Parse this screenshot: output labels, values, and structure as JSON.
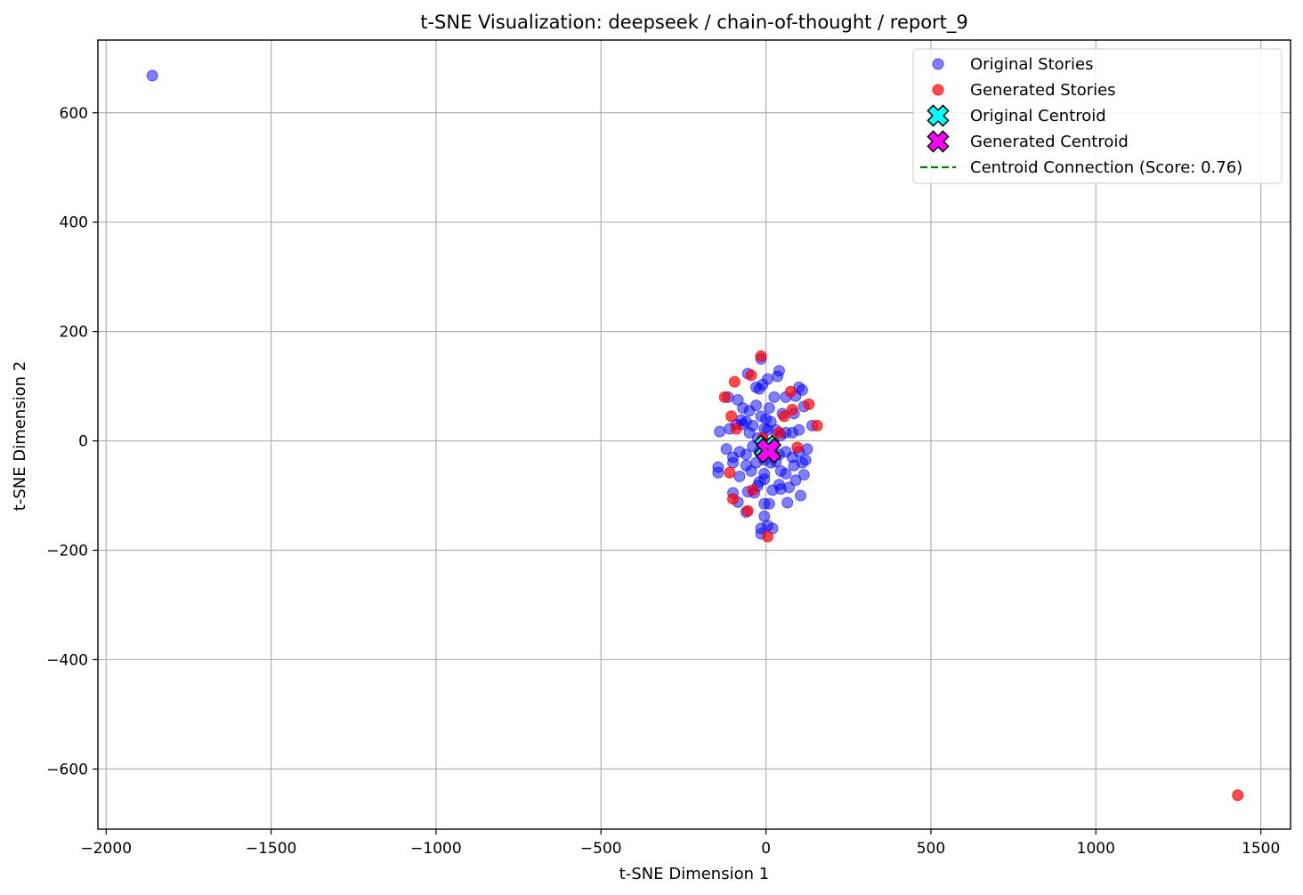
{
  "chart_data": {
    "type": "scatter",
    "title": "t-SNE Visualization: deepseek / chain-of-thought / report_9",
    "xlabel": "t-SNE Dimension 1",
    "ylabel": "t-SNE Dimension 2",
    "xlim": [
      -2025,
      1590
    ],
    "ylim": [
      -710,
      733
    ],
    "xticks": [
      -2000,
      -1500,
      -1000,
      -500,
      0,
      500,
      1000,
      1500
    ],
    "yticks": [
      -600,
      -400,
      -200,
      0,
      200,
      400,
      600
    ],
    "grid": true,
    "legend_position": "top-right",
    "series": [
      {
        "name": "Original Stories",
        "color": "#0000ff",
        "marker": "circle",
        "points": [
          [
            -1860,
            668
          ],
          [
            -55,
            123
          ],
          [
            40,
            128
          ],
          [
            -15,
            150
          ],
          [
            35,
            118
          ],
          [
            -20,
            95
          ],
          [
            -10,
            103
          ],
          [
            -30,
            98
          ],
          [
            5,
            113
          ],
          [
            25,
            80
          ],
          [
            100,
            98
          ],
          [
            110,
            93
          ],
          [
            -70,
            60
          ],
          [
            -50,
            55
          ],
          [
            -30,
            65
          ],
          [
            0,
            40
          ],
          [
            10,
            60
          ],
          [
            50,
            50
          ],
          [
            60,
            80
          ],
          [
            90,
            82
          ],
          [
            85,
            50
          ],
          [
            115,
            63
          ],
          [
            -115,
            80
          ],
          [
            -85,
            75
          ],
          [
            -75,
            38
          ],
          [
            -60,
            35
          ],
          [
            -40,
            28
          ],
          [
            -15,
            45
          ],
          [
            -5,
            22
          ],
          [
            5,
            20
          ],
          [
            15,
            35
          ],
          [
            30,
            20
          ],
          [
            45,
            10
          ],
          [
            60,
            15
          ],
          [
            80,
            15
          ],
          [
            100,
            20
          ],
          [
            140,
            28
          ],
          [
            -140,
            17
          ],
          [
            -110,
            22
          ],
          [
            -90,
            30
          ],
          [
            -70,
            30
          ],
          [
            -50,
            15
          ],
          [
            -25,
            5
          ],
          [
            -10,
            0
          ],
          [
            -120,
            -15
          ],
          [
            -100,
            -30
          ],
          [
            -80,
            -20
          ],
          [
            -60,
            -25
          ],
          [
            -40,
            -10
          ],
          [
            -20,
            -20
          ],
          [
            -5,
            -35
          ],
          [
            20,
            -10
          ],
          [
            40,
            -25
          ],
          [
            60,
            -20
          ],
          [
            80,
            -30
          ],
          [
            100,
            -20
          ],
          [
            125,
            -15
          ],
          [
            -145,
            -48
          ],
          [
            -145,
            -58
          ],
          [
            -100,
            -40
          ],
          [
            -80,
            -65
          ],
          [
            -60,
            -45
          ],
          [
            -45,
            -55
          ],
          [
            -30,
            -40
          ],
          [
            -20,
            -75
          ],
          [
            -5,
            -60
          ],
          [
            15,
            -40
          ],
          [
            30,
            -38
          ],
          [
            45,
            -55
          ],
          [
            60,
            -60
          ],
          [
            85,
            -45
          ],
          [
            110,
            -40
          ],
          [
            120,
            -35
          ],
          [
            115,
            -62
          ],
          [
            90,
            -72
          ],
          [
            70,
            -85
          ],
          [
            45,
            -88
          ],
          [
            20,
            -90
          ],
          [
            -5,
            -70
          ],
          [
            -25,
            -82
          ],
          [
            -35,
            -95
          ],
          [
            -55,
            -93
          ],
          [
            -100,
            -95
          ],
          [
            -85,
            -112
          ],
          [
            -60,
            -130
          ],
          [
            -5,
            -115
          ],
          [
            10,
            -115
          ],
          [
            -5,
            -138
          ],
          [
            65,
            -113
          ],
          [
            105,
            -100
          ],
          [
            -15,
            -160
          ],
          [
            20,
            -160
          ],
          [
            -15,
            -170
          ],
          [
            5,
            -155
          ],
          [
            40,
            -80
          ]
        ]
      },
      {
        "name": "Generated Stories",
        "color": "#ff0000",
        "marker": "circle",
        "points": [
          [
            1430,
            -648
          ],
          [
            -15,
            155
          ],
          [
            -45,
            120
          ],
          [
            -95,
            108
          ],
          [
            -125,
            80
          ],
          [
            -105,
            45
          ],
          [
            -90,
            22
          ],
          [
            75,
            90
          ],
          [
            130,
            67
          ],
          [
            80,
            57
          ],
          [
            55,
            45
          ],
          [
            155,
            28
          ],
          [
            40,
            15
          ],
          [
            -10,
            5
          ],
          [
            0,
            -5
          ],
          [
            95,
            -12
          ],
          [
            -110,
            -58
          ],
          [
            -40,
            -90
          ],
          [
            -100,
            -106
          ],
          [
            -55,
            -128
          ],
          [
            5,
            -175
          ]
        ]
      },
      {
        "name": "Original Centroid",
        "color": "#00ffff",
        "marker": "x",
        "points": [
          [
            2,
            -12
          ]
        ]
      },
      {
        "name": "Generated Centroid",
        "color": "#ff00ff",
        "marker": "x",
        "points": [
          [
            8,
            -18
          ]
        ]
      },
      {
        "name": "Centroid Connection (Score: 0.76)",
        "color": "#008000",
        "marker": "dashed-line",
        "points": [
          [
            2,
            -12
          ],
          [
            8,
            -18
          ]
        ]
      }
    ]
  }
}
